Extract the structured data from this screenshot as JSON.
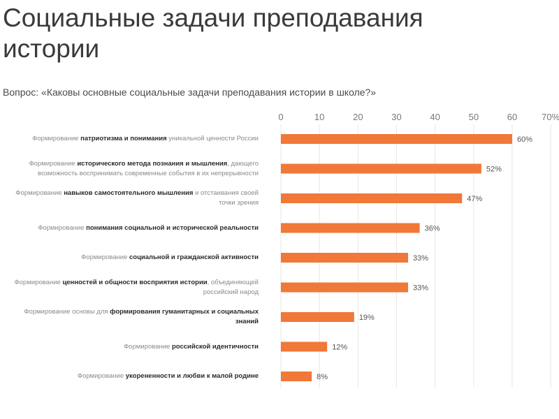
{
  "title": "Социальные задачи преподавания истории",
  "question": "Вопрос: «Каковы основные социальные задачи преподавания истории в школе?»",
  "colors": {
    "bar": "#f07838",
    "grid": "#eee6dc",
    "tick": "#777777"
  },
  "chart_data": {
    "type": "bar",
    "orientation": "horizontal",
    "xlim": [
      0,
      70
    ],
    "ticks": [
      "0",
      "10",
      "20",
      "30",
      "40",
      "50",
      "60",
      "70%"
    ],
    "tick_values": [
      0,
      10,
      20,
      30,
      40,
      50,
      60,
      70
    ],
    "grid": true,
    "categories": [
      [
        [
          {
            "t": "Формирование ",
            "b": false
          },
          {
            "t": "патриотизма и понимания",
            "b": true
          },
          {
            "t": " уникальной ценности России",
            "b": false
          }
        ]
      ],
      [
        [
          {
            "t": "Формирование ",
            "b": false
          },
          {
            "t": "исторического метода познания и мышления",
            "b": true
          },
          {
            "t": ", дающего",
            "b": false
          }
        ],
        [
          {
            "t": "возможность воспринимать современные события в их непрерывности",
            "b": false
          }
        ]
      ],
      [
        [
          {
            "t": "Формирование ",
            "b": false
          },
          {
            "t": "навыков самостоятельного мышления",
            "b": true
          },
          {
            "t": " и отстаивания своей",
            "b": false
          }
        ],
        [
          {
            "t": "точки зрения",
            "b": false
          }
        ]
      ],
      [
        [
          {
            "t": "Формирование ",
            "b": false
          },
          {
            "t": "понимания социальной и исторической реальности",
            "b": true
          }
        ]
      ],
      [
        [
          {
            "t": "Формирование ",
            "b": false
          },
          {
            "t": "социальной и гражданской активности",
            "b": true
          }
        ]
      ],
      [
        [
          {
            "t": "Формирование ",
            "b": false
          },
          {
            "t": "ценностей и общности восприятия истории",
            "b": true
          },
          {
            "t": ", объединяющей",
            "b": false
          }
        ],
        [
          {
            "t": "российский народ",
            "b": false
          }
        ]
      ],
      [
        [
          {
            "t": "Формирование основы для ",
            "b": false
          },
          {
            "t": "формирования гуманитарных и социальных",
            "b": true
          }
        ],
        [
          {
            "t": "знаний",
            "b": true
          }
        ]
      ],
      [
        [
          {
            "t": "Формирование ",
            "b": false
          },
          {
            "t": "российской идентичности",
            "b": true
          }
        ]
      ],
      [
        [
          {
            "t": "Формирование ",
            "b": false
          },
          {
            "t": "укорененности и любви к малой родине",
            "b": true
          }
        ]
      ]
    ],
    "values": [
      60,
      52,
      47,
      36,
      33,
      33,
      19,
      12,
      8
    ],
    "value_labels": [
      "60%",
      "52%",
      "47%",
      "36%",
      "33%",
      "33%",
      "19%",
      "12%",
      "8%"
    ]
  }
}
